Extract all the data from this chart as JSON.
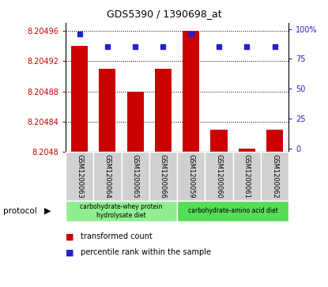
{
  "title": "GDS5390 / 1390698_at",
  "samples": [
    "GSM1200063",
    "GSM1200064",
    "GSM1200065",
    "GSM1200066",
    "GSM1200059",
    "GSM1200060",
    "GSM1200061",
    "GSM1200062"
  ],
  "red_values": [
    8.20494,
    8.20491,
    8.20488,
    8.20491,
    8.20496,
    8.20483,
    8.204805,
    8.20483
  ],
  "blue_values": [
    96,
    85,
    85,
    85,
    96,
    85,
    85,
    85
  ],
  "ylim_left": [
    8.2048,
    8.20497
  ],
  "ylim_right": [
    -3,
    105
  ],
  "yticks_left": [
    8.2048,
    8.20484,
    8.20488,
    8.20492,
    8.20496
  ],
  "ytick_labels_left": [
    "8.2048",
    "8.20484",
    "8.20488",
    "8.20492",
    "8.20496"
  ],
  "yticks_right": [
    0,
    25,
    50,
    75,
    100
  ],
  "ytick_labels_right": [
    "0",
    "25",
    "50",
    "75",
    "100%"
  ],
  "bar_color": "#cc0000",
  "dot_color": "#2222cc",
  "protocol_groups": [
    {
      "label": "carbohydrate-whey protein\nhydrolysate diet",
      "start": 0,
      "end": 4,
      "color": "#90ee90"
    },
    {
      "label": "carbohydrate-amino acid diet",
      "start": 4,
      "end": 8,
      "color": "#55dd55"
    }
  ],
  "legend_items": [
    {
      "color": "#cc0000",
      "label": "transformed count"
    },
    {
      "color": "#2222cc",
      "label": "percentile rank within the sample"
    }
  ],
  "grid_color": "#000000",
  "tick_color_left": "#cc0000",
  "tick_color_right": "#2222cc",
  "bg_plot": "#ffffff",
  "bg_label": "#d0d0d0",
  "protocol_label": "protocol"
}
